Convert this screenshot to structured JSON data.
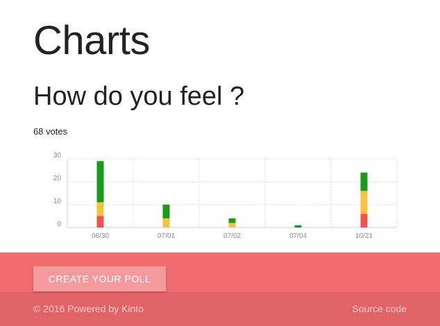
{
  "header": {
    "title": "Charts"
  },
  "poll": {
    "question": "How do you feel ?",
    "votes": "68 votes"
  },
  "chart_data": {
    "type": "bar",
    "stacked": true,
    "categories": [
      "06/30",
      "07/01",
      "07/02",
      "07/04",
      "10/21"
    ],
    "series": [
      {
        "color": "#ef5350",
        "values": [
          5,
          0,
          0,
          0,
          6
        ]
      },
      {
        "color": "#f5c342",
        "values": [
          6,
          4,
          2,
          0,
          10
        ]
      },
      {
        "color": "#1a9a1a",
        "values": [
          18,
          6,
          2,
          1,
          8
        ]
      }
    ],
    "yticks": [
      0,
      10,
      20,
      30
    ],
    "ylim": [
      0,
      30
    ],
    "grid": true,
    "xlabel": "",
    "ylabel": ""
  },
  "actions": {
    "create_label": "CREATE YOUR POLL"
  },
  "footer": {
    "copyright": "© 2016 Powered by Kinto",
    "source_label": "Source code"
  }
}
